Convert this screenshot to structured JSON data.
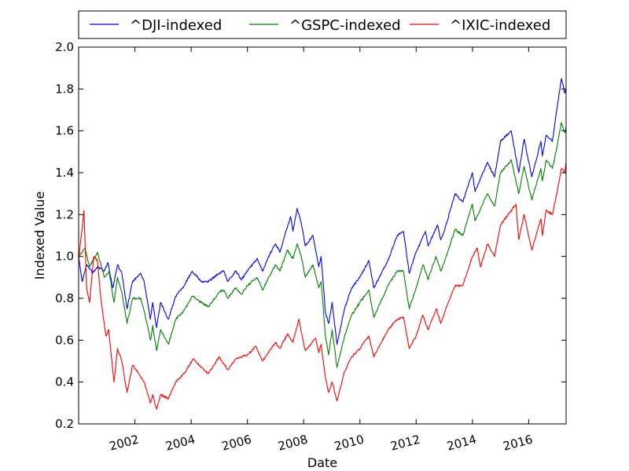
{
  "chart_data": {
    "type": "line",
    "xlabel": "Date",
    "ylabel": "Indexed Value",
    "xlim": [
      "2000-01-01",
      "2017-05-01"
    ],
    "ylim": [
      0.2,
      2.0
    ],
    "x_ticks": [
      "2002",
      "2004",
      "2006",
      "2008",
      "2010",
      "2012",
      "2014",
      "2016"
    ],
    "y_ticks": [
      "0.2",
      "0.4",
      "0.6",
      "0.8",
      "1.0",
      "1.2",
      "1.4",
      "1.6",
      "1.8",
      "2.0"
    ],
    "legend_position": "top, above plot",
    "grid": false,
    "series": [
      {
        "name": "^DJI-indexed",
        "color": "#0000ff",
        "points": [
          [
            "2000-01-01",
            1.0
          ],
          [
            "2000-02-15",
            0.88
          ],
          [
            "2000-04-15",
            0.96
          ],
          [
            "2000-07-01",
            0.92
          ],
          [
            "2000-09-01",
            0.95
          ],
          [
            "2000-12-01",
            0.93
          ],
          [
            "2001-01-15",
            0.97
          ],
          [
            "2001-03-20",
            0.85
          ],
          [
            "2001-05-20",
            0.96
          ],
          [
            "2001-07-15",
            0.92
          ],
          [
            "2001-09-21",
            0.75
          ],
          [
            "2001-12-01",
            0.88
          ],
          [
            "2002-03-15",
            0.92
          ],
          [
            "2002-05-01",
            0.88
          ],
          [
            "2002-07-20",
            0.7
          ],
          [
            "2002-08-20",
            0.78
          ],
          [
            "2002-10-09",
            0.66
          ],
          [
            "2002-12-01",
            0.78
          ],
          [
            "2003-03-10",
            0.7
          ],
          [
            "2003-06-15",
            0.81
          ],
          [
            "2003-10-01",
            0.86
          ],
          [
            "2004-01-15",
            0.93
          ],
          [
            "2004-05-15",
            0.88
          ],
          [
            "2004-08-15",
            0.88
          ],
          [
            "2004-12-31",
            0.92
          ],
          [
            "2005-03-01",
            0.93
          ],
          [
            "2005-04-20",
            0.88
          ],
          [
            "2005-08-01",
            0.93
          ],
          [
            "2005-10-15",
            0.89
          ],
          [
            "2005-12-31",
            0.93
          ],
          [
            "2006-05-10",
            0.99
          ],
          [
            "2006-07-15",
            0.93
          ],
          [
            "2006-10-15",
            1.01
          ],
          [
            "2006-12-31",
            1.06
          ],
          [
            "2007-02-27",
            1.02
          ],
          [
            "2007-05-15",
            1.12
          ],
          [
            "2007-07-15",
            1.19
          ],
          [
            "2007-08-15",
            1.12
          ],
          [
            "2007-10-09",
            1.23
          ],
          [
            "2007-12-01",
            1.16
          ],
          [
            "2008-01-22",
            1.05
          ],
          [
            "2008-05-01",
            1.1
          ],
          [
            "2008-07-15",
            0.95
          ],
          [
            "2008-08-15",
            1.0
          ],
          [
            "2008-10-10",
            0.73
          ],
          [
            "2008-11-20",
            0.68
          ],
          [
            "2009-01-05",
            0.78
          ],
          [
            "2009-03-09",
            0.58
          ],
          [
            "2009-06-15",
            0.75
          ],
          [
            "2009-09-15",
            0.85
          ],
          [
            "2009-12-31",
            0.9
          ],
          [
            "2010-04-26",
            0.98
          ],
          [
            "2010-07-01",
            0.85
          ],
          [
            "2010-12-31",
            0.98
          ],
          [
            "2011-04-29",
            1.1
          ],
          [
            "2011-07-20",
            1.12
          ],
          [
            "2011-10-03",
            0.92
          ],
          [
            "2011-12-31",
            1.02
          ],
          [
            "2012-05-01",
            1.12
          ],
          [
            "2012-06-04",
            1.05
          ],
          [
            "2012-10-05",
            1.15
          ],
          [
            "2012-11-15",
            1.08
          ],
          [
            "2012-12-31",
            1.12
          ],
          [
            "2013-05-20",
            1.3
          ],
          [
            "2013-08-28",
            1.26
          ],
          [
            "2013-12-31",
            1.4
          ],
          [
            "2014-02-03",
            1.31
          ],
          [
            "2014-07-15",
            1.45
          ],
          [
            "2014-10-15",
            1.38
          ],
          [
            "2014-12-31",
            1.55
          ],
          [
            "2015-05-19",
            1.6
          ],
          [
            "2015-08-25",
            1.4
          ],
          [
            "2015-11-03",
            1.56
          ],
          [
            "2016-02-11",
            1.38
          ],
          [
            "2016-06-08",
            1.55
          ],
          [
            "2016-06-27",
            1.48
          ],
          [
            "2016-08-15",
            1.58
          ],
          [
            "2016-11-04",
            1.55
          ],
          [
            "2016-12-31",
            1.7
          ],
          [
            "2017-03-01",
            1.85
          ],
          [
            "2017-04-15",
            1.78
          ],
          [
            "2017-05-01",
            1.8
          ]
        ]
      },
      {
        "name": "^GSPC-indexed",
        "color": "#008000",
        "points": [
          [
            "2000-01-01",
            1.0
          ],
          [
            "2000-03-24",
            1.04
          ],
          [
            "2000-05-20",
            0.95
          ],
          [
            "2000-09-01",
            1.02
          ],
          [
            "2000-12-01",
            0.9
          ],
          [
            "2001-01-30",
            0.93
          ],
          [
            "2001-04-04",
            0.78
          ],
          [
            "2001-05-20",
            0.9
          ],
          [
            "2001-07-15",
            0.83
          ],
          [
            "2001-09-21",
            0.68
          ],
          [
            "2001-12-01",
            0.8
          ],
          [
            "2002-03-19",
            0.8
          ],
          [
            "2002-05-01",
            0.74
          ],
          [
            "2002-07-23",
            0.6
          ],
          [
            "2002-08-20",
            0.67
          ],
          [
            "2002-10-09",
            0.55
          ],
          [
            "2002-12-01",
            0.65
          ],
          [
            "2003-03-11",
            0.58
          ],
          [
            "2003-06-15",
            0.7
          ],
          [
            "2003-10-01",
            0.74
          ],
          [
            "2004-01-15",
            0.81
          ],
          [
            "2004-05-15",
            0.78
          ],
          [
            "2004-08-15",
            0.76
          ],
          [
            "2004-12-31",
            0.83
          ],
          [
            "2005-03-01",
            0.84
          ],
          [
            "2005-04-20",
            0.8
          ],
          [
            "2005-08-01",
            0.85
          ],
          [
            "2005-10-15",
            0.82
          ],
          [
            "2005-12-31",
            0.86
          ],
          [
            "2006-05-05",
            0.9
          ],
          [
            "2006-07-15",
            0.84
          ],
          [
            "2006-12-31",
            0.96
          ],
          [
            "2007-02-27",
            0.93
          ],
          [
            "2007-06-04",
            1.03
          ],
          [
            "2007-08-15",
            0.99
          ],
          [
            "2007-10-09",
            1.06
          ],
          [
            "2007-12-01",
            1.0
          ],
          [
            "2008-01-22",
            0.9
          ],
          [
            "2008-05-01",
            0.96
          ],
          [
            "2008-07-15",
            0.85
          ],
          [
            "2008-08-15",
            0.88
          ],
          [
            "2008-10-10",
            0.62
          ],
          [
            "2008-11-20",
            0.53
          ],
          [
            "2009-01-05",
            0.65
          ],
          [
            "2009-03-09",
            0.47
          ],
          [
            "2009-06-15",
            0.62
          ],
          [
            "2009-09-15",
            0.72
          ],
          [
            "2009-12-31",
            0.78
          ],
          [
            "2010-04-26",
            0.84
          ],
          [
            "2010-07-01",
            0.71
          ],
          [
            "2010-12-31",
            0.86
          ],
          [
            "2011-04-29",
            0.93
          ],
          [
            "2011-07-20",
            0.93
          ],
          [
            "2011-10-03",
            0.75
          ],
          [
            "2011-12-31",
            0.85
          ],
          [
            "2012-04-02",
            0.96
          ],
          [
            "2012-06-04",
            0.89
          ],
          [
            "2012-09-14",
            1.0
          ],
          [
            "2012-11-15",
            0.93
          ],
          [
            "2012-12-31",
            0.97
          ],
          [
            "2013-05-20",
            1.13
          ],
          [
            "2013-08-28",
            1.1
          ],
          [
            "2013-12-31",
            1.25
          ],
          [
            "2014-02-03",
            1.17
          ],
          [
            "2014-07-15",
            1.3
          ],
          [
            "2014-10-15",
            1.24
          ],
          [
            "2014-12-31",
            1.4
          ],
          [
            "2015-05-21",
            1.46
          ],
          [
            "2015-08-25",
            1.3
          ],
          [
            "2015-11-03",
            1.43
          ],
          [
            "2016-02-11",
            1.27
          ],
          [
            "2016-06-08",
            1.42
          ],
          [
            "2016-06-27",
            1.36
          ],
          [
            "2016-08-15",
            1.46
          ],
          [
            "2016-11-04",
            1.42
          ],
          [
            "2016-12-31",
            1.52
          ],
          [
            "2017-03-01",
            1.64
          ],
          [
            "2017-04-15",
            1.59
          ],
          [
            "2017-05-01",
            1.62
          ]
        ]
      },
      {
        "name": "^IXIC-indexed",
        "color": "#ff0000",
        "points": [
          [
            "2000-01-01",
            0.97
          ],
          [
            "2000-01-20",
            1.05
          ],
          [
            "2000-02-20",
            1.15
          ],
          [
            "2000-03-10",
            1.22
          ],
          [
            "2000-04-14",
            0.85
          ],
          [
            "2000-05-23",
            0.78
          ],
          [
            "2000-07-15",
            1.0
          ],
          [
            "2000-09-01",
            0.98
          ],
          [
            "2000-10-15",
            0.8
          ],
          [
            "2000-12-20",
            0.62
          ],
          [
            "2001-01-25",
            0.65
          ],
          [
            "2001-04-04",
            0.4
          ],
          [
            "2001-05-20",
            0.56
          ],
          [
            "2001-07-15",
            0.5
          ],
          [
            "2001-09-21",
            0.35
          ],
          [
            "2001-12-01",
            0.48
          ],
          [
            "2002-01-15",
            0.46
          ],
          [
            "2002-05-01",
            0.4
          ],
          [
            "2002-07-23",
            0.3
          ],
          [
            "2002-08-20",
            0.34
          ],
          [
            "2002-10-09",
            0.27
          ],
          [
            "2002-12-01",
            0.34
          ],
          [
            "2003-03-11",
            0.32
          ],
          [
            "2003-06-15",
            0.4
          ],
          [
            "2003-10-01",
            0.44
          ],
          [
            "2004-01-26",
            0.51
          ],
          [
            "2004-05-15",
            0.47
          ],
          [
            "2004-08-12",
            0.44
          ],
          [
            "2004-12-31",
            0.52
          ],
          [
            "2005-04-20",
            0.46
          ],
          [
            "2005-08-01",
            0.51
          ],
          [
            "2005-12-31",
            0.53
          ],
          [
            "2006-04-20",
            0.57
          ],
          [
            "2006-07-15",
            0.5
          ],
          [
            "2006-12-31",
            0.59
          ],
          [
            "2007-02-27",
            0.56
          ],
          [
            "2007-06-04",
            0.63
          ],
          [
            "2007-08-15",
            0.59
          ],
          [
            "2007-10-31",
            0.7
          ],
          [
            "2007-12-01",
            0.64
          ],
          [
            "2008-01-22",
            0.55
          ],
          [
            "2008-06-05",
            0.61
          ],
          [
            "2008-07-15",
            0.54
          ],
          [
            "2008-08-15",
            0.58
          ],
          [
            "2008-10-10",
            0.42
          ],
          [
            "2008-11-20",
            0.35
          ],
          [
            "2009-01-05",
            0.4
          ],
          [
            "2009-03-09",
            0.31
          ],
          [
            "2009-06-15",
            0.45
          ],
          [
            "2009-09-15",
            0.52
          ],
          [
            "2009-12-31",
            0.56
          ],
          [
            "2010-04-26",
            0.62
          ],
          [
            "2010-07-01",
            0.52
          ],
          [
            "2010-12-31",
            0.65
          ],
          [
            "2011-04-29",
            0.7
          ],
          [
            "2011-07-20",
            0.71
          ],
          [
            "2011-10-03",
            0.56
          ],
          [
            "2011-12-31",
            0.62
          ],
          [
            "2012-03-27",
            0.72
          ],
          [
            "2012-06-04",
            0.65
          ],
          [
            "2012-09-20",
            0.75
          ],
          [
            "2012-11-15",
            0.68
          ],
          [
            "2012-12-31",
            0.73
          ],
          [
            "2013-05-20",
            0.86
          ],
          [
            "2013-08-28",
            0.86
          ],
          [
            "2013-12-31",
            1.0
          ],
          [
            "2014-03-05",
            1.04
          ],
          [
            "2014-04-15",
            0.95
          ],
          [
            "2014-07-15",
            1.06
          ],
          [
            "2014-10-15",
            1.0
          ],
          [
            "2014-12-31",
            1.15
          ],
          [
            "2015-07-20",
            1.25
          ],
          [
            "2015-08-25",
            1.08
          ],
          [
            "2015-11-03",
            1.2
          ],
          [
            "2016-02-11",
            1.03
          ],
          [
            "2016-06-08",
            1.18
          ],
          [
            "2016-06-27",
            1.1
          ],
          [
            "2016-08-15",
            1.22
          ],
          [
            "2016-11-04",
            1.2
          ],
          [
            "2016-12-31",
            1.3
          ],
          [
            "2017-03-01",
            1.42
          ],
          [
            "2017-04-15",
            1.4
          ],
          [
            "2017-05-01",
            1.45
          ]
        ]
      }
    ]
  }
}
